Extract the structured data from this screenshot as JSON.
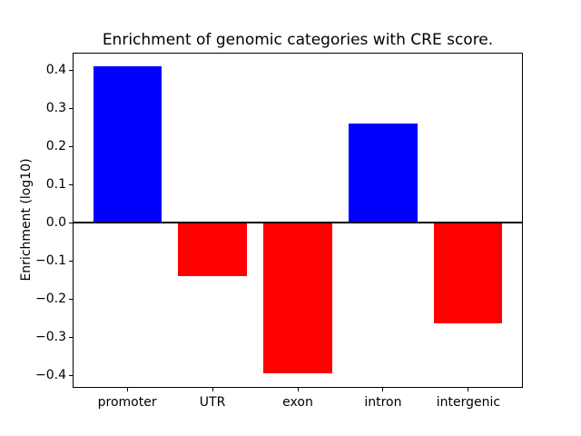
{
  "chart_data": {
    "type": "bar",
    "title": "Enrichment of genomic categories with CRE score.",
    "xlabel": "",
    "ylabel": "Enrichment (log10)",
    "categories": [
      "promoter",
      "UTR",
      "exon",
      "intron",
      "intergenic"
    ],
    "values": [
      0.41,
      -0.14,
      -0.395,
      0.26,
      -0.265
    ],
    "bar_colors": [
      "#0000ff",
      "#ff0000",
      "#ff0000",
      "#0000ff",
      "#ff0000"
    ],
    "positive_color": "#0000ff",
    "negative_color": "#ff0000",
    "yticks": [
      0.4,
      0.3,
      0.2,
      0.1,
      0.0,
      -0.1,
      -0.2,
      -0.3,
      -0.4
    ],
    "ytick_labels": [
      "0.4",
      "0.3",
      "0.2",
      "0.1",
      "0.0",
      "−0.1",
      "−0.2",
      "−0.3",
      "−0.4"
    ],
    "ylim": [
      -0.433,
      0.446
    ],
    "xlim": [
      -0.64,
      4.64
    ],
    "bar_width_units": 0.8,
    "grid": false,
    "legend": null,
    "zero_line": true,
    "background_color": "#ffffff",
    "axes_color": "#000000"
  }
}
